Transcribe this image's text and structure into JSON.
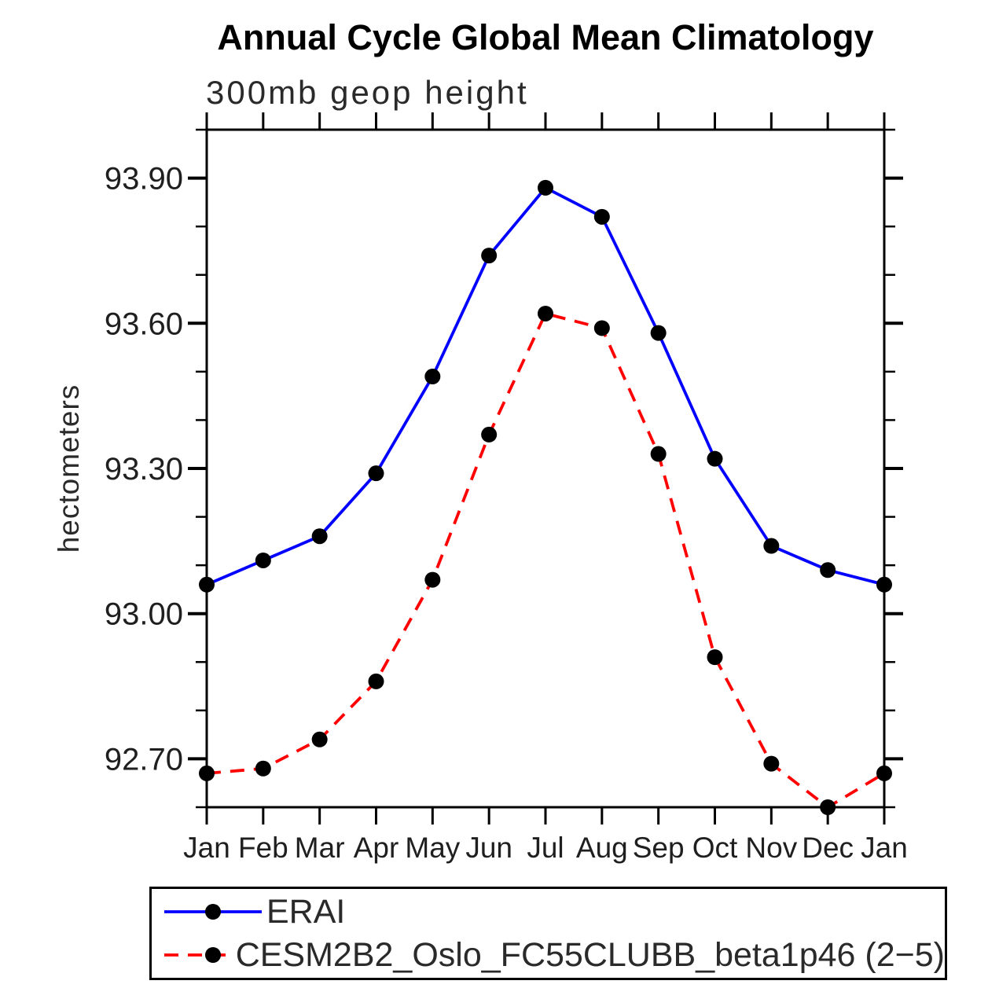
{
  "chart_data": {
    "type": "line",
    "title": "Annual Cycle Global Mean Climatology",
    "subtitle": "300mb geop height",
    "ylabel": "hectometers",
    "xlabel": "",
    "categories": [
      "Jan",
      "Feb",
      "Mar",
      "Apr",
      "May",
      "Jun",
      "Jul",
      "Aug",
      "Sep",
      "Oct",
      "Nov",
      "Dec",
      "Jan"
    ],
    "series": [
      {
        "name": "ERAI",
        "color": "#0000ff",
        "line_style": "solid",
        "marker": "circle",
        "marker_color": "#000000",
        "values": [
          93.06,
          93.11,
          93.16,
          93.29,
          93.49,
          93.74,
          93.88,
          93.82,
          93.58,
          93.32,
          93.14,
          93.09,
          93.06
        ]
      },
      {
        "name": "CESM2B2_Oslo_FC55CLUBB_beta1p46 (2−5)",
        "color": "#ff0000",
        "line_style": "dashed",
        "marker": "circle",
        "marker_color": "#000000",
        "values": [
          92.67,
          92.68,
          92.74,
          92.86,
          93.07,
          93.37,
          93.62,
          93.59,
          93.33,
          92.91,
          92.69,
          92.6,
          92.67
        ]
      }
    ],
    "ylim": [
      92.6,
      94.0
    ],
    "ytick_values": [
      93.9,
      93.6,
      93.3,
      93.0,
      92.7
    ],
    "ytick_labels": [
      "93.90",
      "93.60",
      "93.30",
      "93.00",
      "92.70"
    ],
    "yminor_step": 0.1,
    "grid": false,
    "legend_position": "bottom-left-box",
    "axis_color": "#000000"
  }
}
